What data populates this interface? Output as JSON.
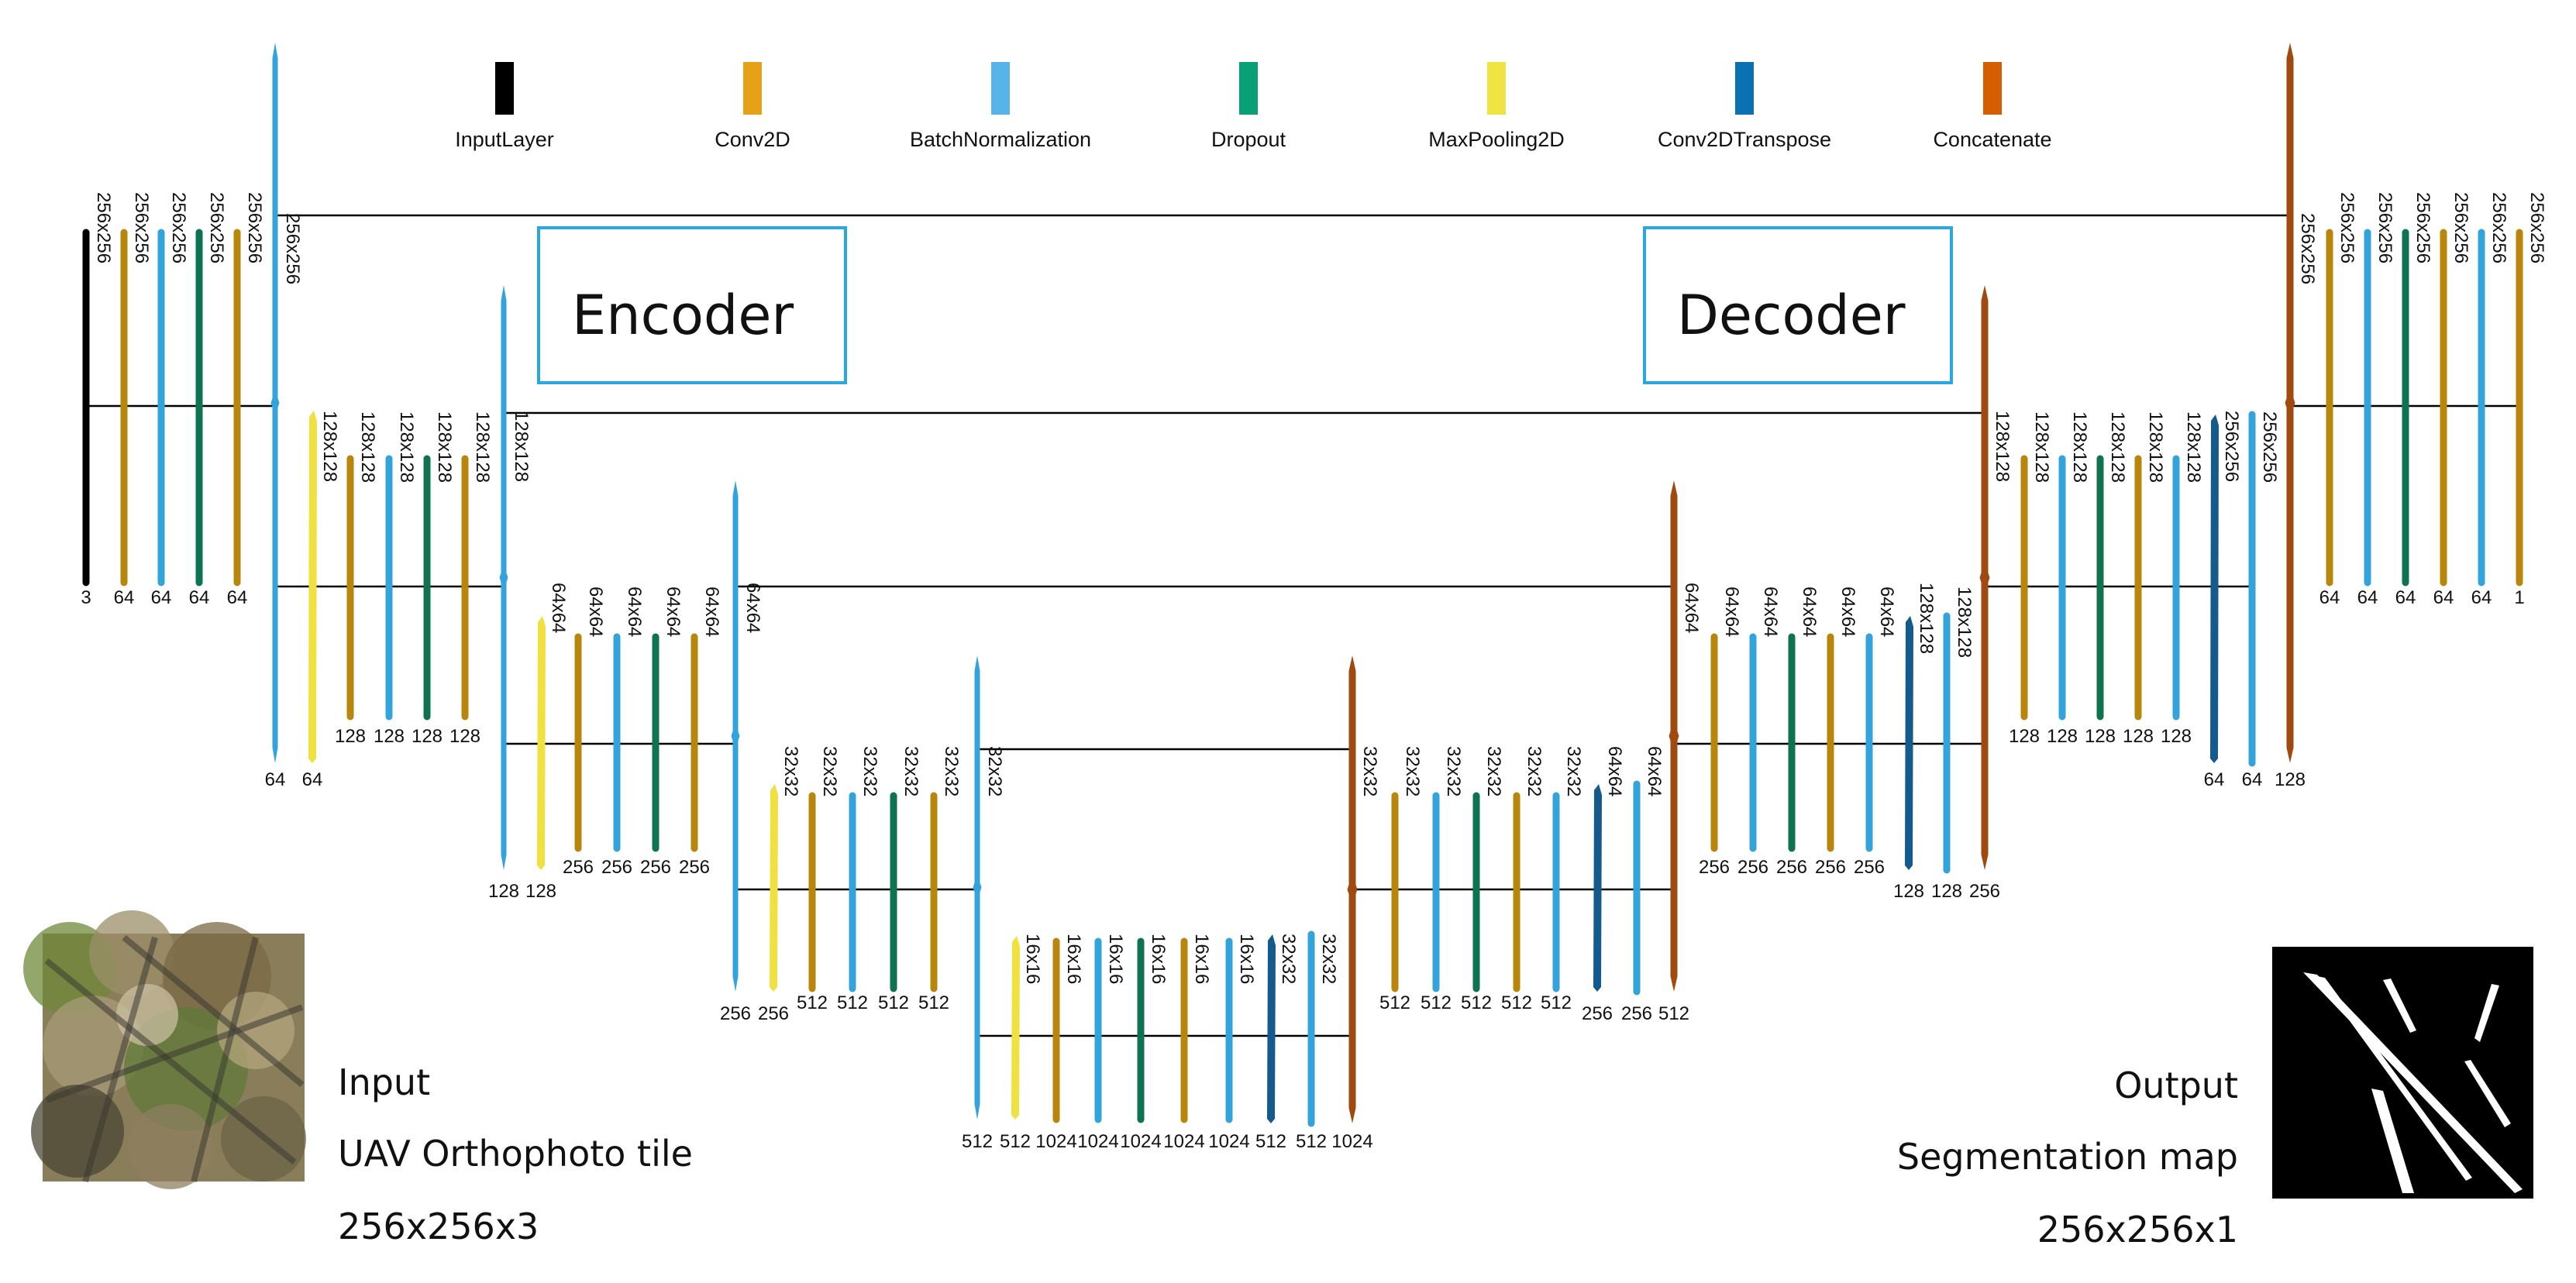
{
  "colors": {
    "input": "#000000",
    "conv": "#b8860b",
    "bn": "#33a3dc",
    "dropout": "#0f7350",
    "pool": "#f0e040",
    "convt": "#145a8c",
    "concat": "#a04a10",
    "box": "#29a8e0",
    "line": "#000000"
  },
  "legend": [
    {
      "label": "InputLayer",
      "color": "#000000"
    },
    {
      "label": "Conv2D",
      "color": "#e6a117"
    },
    {
      "label": "BatchNormalization",
      "color": "#56b4e9"
    },
    {
      "label": "Dropout",
      "color": "#0aa077"
    },
    {
      "label": "MaxPooling2D",
      "color": "#f0e442"
    },
    {
      "label": "Conv2DTranspose",
      "color": "#0a72b2"
    },
    {
      "label": "Concatenate",
      "color": "#d55e00"
    }
  ],
  "boxes": {
    "encoder": "Encoder",
    "decoder": "Decoder"
  },
  "input_panel": {
    "title": "Input",
    "subtitle": "UAV Orthophoto tile",
    "dims": "256x256x3"
  },
  "output_panel": {
    "title": "Output",
    "subtitle": "Segmentation map",
    "dims": "256x256x1"
  },
  "layers": [
    {
      "kind": "input",
      "shape": "256x256",
      "channels": "3"
    },
    {
      "kind": "conv",
      "shape": "256x256",
      "channels": "64"
    },
    {
      "kind": "bn",
      "shape": "256x256",
      "channels": "64"
    },
    {
      "kind": "dropout",
      "shape": "256x256",
      "channels": "64"
    },
    {
      "kind": "conv",
      "shape": "256x256",
      "channels": "64"
    },
    {
      "kind": "bn",
      "shape": "256x256",
      "channels": "64"
    },
    {
      "kind": "pool",
      "shape": "128x128",
      "channels": "64"
    },
    {
      "kind": "conv",
      "shape": "128x128",
      "channels": "128"
    },
    {
      "kind": "bn",
      "shape": "128x128",
      "channels": "128"
    },
    {
      "kind": "dropout",
      "shape": "128x128",
      "channels": "128"
    },
    {
      "kind": "conv",
      "shape": "128x128",
      "channels": "128"
    },
    {
      "kind": "bn",
      "shape": "128x128",
      "channels": "128"
    },
    {
      "kind": "pool",
      "shape": "64x64",
      "channels": "128"
    },
    {
      "kind": "conv",
      "shape": "64x64",
      "channels": "256"
    },
    {
      "kind": "bn",
      "shape": "64x64",
      "channels": "256"
    },
    {
      "kind": "dropout",
      "shape": "64x64",
      "channels": "256"
    },
    {
      "kind": "conv",
      "shape": "64x64",
      "channels": "256"
    },
    {
      "kind": "bn",
      "shape": "64x64",
      "channels": "256"
    },
    {
      "kind": "pool",
      "shape": "32x32",
      "channels": "256"
    },
    {
      "kind": "conv",
      "shape": "32x32",
      "channels": "512"
    },
    {
      "kind": "bn",
      "shape": "32x32",
      "channels": "512"
    },
    {
      "kind": "dropout",
      "shape": "32x32",
      "channels": "512"
    },
    {
      "kind": "conv",
      "shape": "32x32",
      "channels": "512"
    },
    {
      "kind": "bn",
      "shape": "32x32",
      "channels": "512"
    },
    {
      "kind": "pool",
      "shape": "16x16",
      "channels": "512"
    },
    {
      "kind": "conv",
      "shape": "16x16",
      "channels": "1024"
    },
    {
      "kind": "bn",
      "shape": "16x16",
      "channels": "1024"
    },
    {
      "kind": "dropout",
      "shape": "16x16",
      "channels": "1024"
    },
    {
      "kind": "conv",
      "shape": "16x16",
      "channels": "1024"
    },
    {
      "kind": "bn",
      "shape": "16x16",
      "channels": "1024"
    },
    {
      "kind": "convt",
      "shape": "32x32",
      "channels": "512"
    },
    {
      "kind": "bn",
      "shape": "32x32",
      "channels": "512"
    },
    {
      "kind": "concat",
      "shape": "32x32",
      "channels": "1024"
    },
    {
      "kind": "conv",
      "shape": "32x32",
      "channels": "512"
    },
    {
      "kind": "bn",
      "shape": "32x32",
      "channels": "512"
    },
    {
      "kind": "dropout",
      "shape": "32x32",
      "channels": "512"
    },
    {
      "kind": "conv",
      "shape": "32x32",
      "channels": "512"
    },
    {
      "kind": "bn",
      "shape": "32x32",
      "channels": "512"
    },
    {
      "kind": "convt",
      "shape": "64x64",
      "channels": "256"
    },
    {
      "kind": "bn",
      "shape": "64x64",
      "channels": "256"
    },
    {
      "kind": "concat",
      "shape": "64x64",
      "channels": "512"
    },
    {
      "kind": "conv",
      "shape": "64x64",
      "channels": "256"
    },
    {
      "kind": "bn",
      "shape": "64x64",
      "channels": "256"
    },
    {
      "kind": "dropout",
      "shape": "64x64",
      "channels": "256"
    },
    {
      "kind": "conv",
      "shape": "64x64",
      "channels": "256"
    },
    {
      "kind": "bn",
      "shape": "64x64",
      "channels": "256"
    },
    {
      "kind": "convt",
      "shape": "128x128",
      "channels": "128"
    },
    {
      "kind": "bn",
      "shape": "128x128",
      "channels": "128"
    },
    {
      "kind": "concat",
      "shape": "128x128",
      "channels": "256"
    },
    {
      "kind": "conv",
      "shape": "128x128",
      "channels": "128"
    },
    {
      "kind": "bn",
      "shape": "128x128",
      "channels": "128"
    },
    {
      "kind": "dropout",
      "shape": "128x128",
      "channels": "128"
    },
    {
      "kind": "conv",
      "shape": "128x128",
      "channels": "128"
    },
    {
      "kind": "bn",
      "shape": "128x128",
      "channels": "128"
    },
    {
      "kind": "convt",
      "shape": "256x256",
      "channels": "64"
    },
    {
      "kind": "bn",
      "shape": "256x256",
      "channels": "64"
    },
    {
      "kind": "concat",
      "shape": "256x256",
      "channels": "128"
    },
    {
      "kind": "conv",
      "shape": "256x256",
      "channels": "64"
    },
    {
      "kind": "bn",
      "shape": "256x256",
      "channels": "64"
    },
    {
      "kind": "dropout",
      "shape": "256x256",
      "channels": "64"
    },
    {
      "kind": "conv",
      "shape": "256x256",
      "channels": "64"
    },
    {
      "kind": "bn",
      "shape": "256x256",
      "channels": "64"
    },
    {
      "kind": "conv",
      "shape": "256x256",
      "channels": "1"
    }
  ]
}
